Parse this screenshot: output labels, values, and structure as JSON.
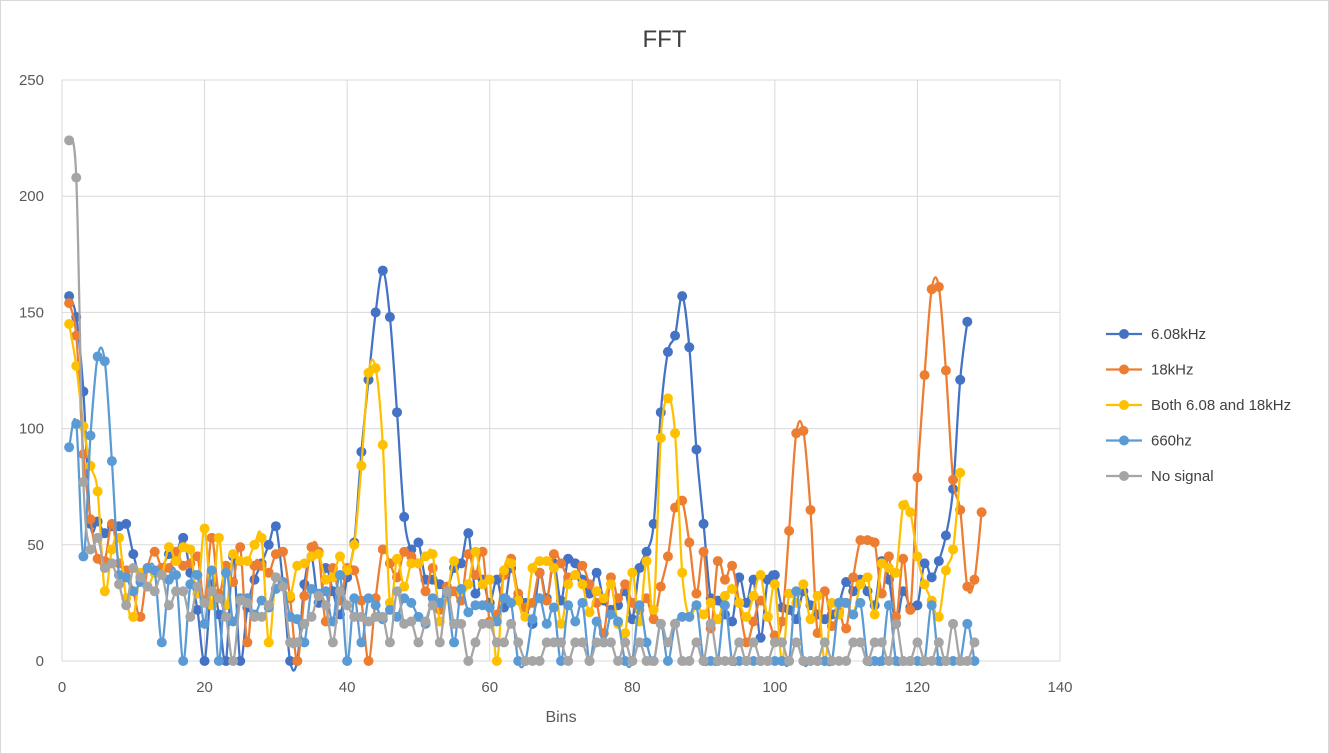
{
  "chart_data": {
    "type": "line",
    "title": "FFT",
    "xlabel": "Bins",
    "ylabel": "",
    "xlim": [
      0,
      140
    ],
    "ylim": [
      0,
      250
    ],
    "xticks": [
      "0",
      "20",
      "40",
      "60",
      "80",
      "100",
      "120",
      "140"
    ],
    "yticks": [
      "0",
      "50",
      "100",
      "150",
      "200",
      "250"
    ],
    "grid": true,
    "legend_position": "right",
    "series": [
      {
        "name": "6.08kHz",
        "color": "#4472C4",
        "x_start": 1,
        "values": [
          157,
          148,
          116,
          59,
          60,
          55,
          58,
          58,
          59,
          46,
          36,
          40,
          38,
          40,
          46,
          46,
          53,
          38,
          22,
          0,
          33,
          20,
          0,
          45,
          0,
          23,
          35,
          42,
          50,
          58,
          33,
          0,
          0,
          33,
          45,
          25,
          40,
          30,
          20,
          36,
          51,
          90,
          121,
          150,
          168,
          148,
          107,
          62,
          48,
          51,
          35,
          35,
          33,
          31,
          40,
          42,
          55,
          29,
          35,
          25,
          35,
          23,
          40,
          27,
          25,
          16,
          38,
          27,
          42,
          26,
          44,
          42,
          35,
          29,
          38,
          26,
          22,
          24,
          30,
          18,
          40,
          47,
          59,
          107,
          133,
          140,
          157,
          135,
          91,
          59,
          27,
          26,
          20,
          17,
          36,
          25,
          35,
          10,
          35,
          37,
          23,
          22,
          18,
          30,
          24,
          20,
          18,
          20,
          25,
          34,
          30,
          35,
          30,
          24,
          43,
          35,
          16,
          30,
          23,
          24,
          42,
          36,
          43,
          54,
          74,
          121,
          146
        ]
      },
      {
        "name": "18kHz",
        "color": "#ED7D31",
        "x_start": 1,
        "values": [
          154,
          140,
          89,
          61,
          44,
          43,
          59,
          42,
          39,
          30,
          19,
          40,
          47,
          40,
          40,
          47,
          41,
          42,
          45,
          26,
          53,
          29,
          41,
          34,
          49,
          8,
          41,
          41,
          38,
          46,
          47,
          27,
          0,
          28,
          49,
          47,
          17,
          40,
          26,
          40,
          39,
          26,
          0,
          27,
          48,
          42,
          36,
          47,
          45,
          42,
          30,
          40,
          22,
          32,
          30,
          26,
          46,
          37,
          47,
          17,
          20,
          37,
          44,
          29,
          23,
          25,
          38,
          26,
          46,
          42,
          36,
          37,
          41,
          33,
          25,
          12,
          36,
          27,
          33,
          25,
          22,
          27,
          18,
          32,
          45,
          66,
          69,
          51,
          29,
          47,
          14,
          43,
          35,
          41,
          25,
          8,
          17,
          26,
          19,
          11,
          17,
          56,
          98,
          99,
          65,
          12,
          30,
          15,
          21,
          14,
          36,
          52,
          52,
          51,
          29,
          45,
          19,
          44,
          22,
          79,
          123,
          160,
          161,
          125,
          78,
          65,
          32,
          35,
          64
        ]
      },
      {
        "name": "Both 6.08 and 18kHz",
        "color": "#FFC000",
        "x_start": 1,
        "values": [
          145,
          127,
          101,
          84,
          73,
          30,
          48,
          53,
          27,
          19,
          38,
          32,
          38,
          37,
          49,
          43,
          49,
          48,
          29,
          57,
          24,
          53,
          24,
          46,
          43,
          43,
          50,
          53,
          8,
          36,
          32,
          28,
          41,
          42,
          45,
          46,
          35,
          36,
          45,
          39,
          50,
          84,
          124,
          126,
          93,
          25,
          44,
          32,
          42,
          42,
          45,
          46,
          17,
          28,
          43,
          30,
          33,
          47,
          33,
          35,
          0,
          39,
          42,
          26,
          19,
          40,
          43,
          43,
          40,
          16,
          33,
          37,
          33,
          21,
          30,
          27,
          33,
          16,
          12,
          38,
          17,
          43,
          22,
          96,
          113,
          98,
          38,
          19,
          24,
          20,
          25,
          18,
          28,
          31,
          25,
          19,
          28,
          37,
          19,
          33,
          0,
          29,
          25,
          33,
          18,
          28,
          0,
          25,
          20,
          25,
          20,
          33,
          36,
          20,
          42,
          40,
          38,
          67,
          64,
          45,
          33,
          26,
          19,
          39,
          48,
          81
        ]
      },
      {
        "name": "660hz",
        "color": "#5B9BD5",
        "x_start": 1,
        "values": [
          92,
          102,
          45,
          97,
          131,
          129,
          86,
          37,
          36,
          30,
          34,
          40,
          39,
          8,
          35,
          37,
          0,
          33,
          37,
          16,
          39,
          0,
          38,
          17,
          27,
          27,
          20,
          26,
          23,
          31,
          34,
          19,
          18,
          8,
          31,
          29,
          30,
          17,
          37,
          0,
          27,
          8,
          27,
          24,
          18,
          22,
          19,
          27,
          25,
          19,
          16,
          27,
          25,
          29,
          8,
          31,
          21,
          24,
          24,
          23,
          17,
          27,
          25,
          0,
          0,
          18,
          27,
          16,
          23,
          0,
          24,
          17,
          25,
          0,
          17,
          8,
          20,
          17,
          0,
          0,
          24,
          8,
          0,
          16,
          0,
          16,
          19,
          19,
          24,
          0,
          0,
          0,
          24,
          0,
          0,
          0,
          0,
          0,
          0,
          0,
          0,
          0,
          30,
          0,
          0,
          0,
          0,
          0,
          25,
          25,
          20,
          25,
          0,
          0,
          0,
          24,
          0,
          0,
          0,
          0,
          0,
          24,
          0,
          0,
          0,
          0,
          16,
          0
        ]
      },
      {
        "name": "No signal",
        "color": "#A5A5A5",
        "x_start": 1,
        "values": [
          224,
          208,
          77,
          48,
          53,
          40,
          42,
          33,
          24,
          40,
          36,
          32,
          30,
          37,
          24,
          30,
          30,
          19,
          32,
          25,
          30,
          27,
          19,
          0,
          26,
          25,
          19,
          19,
          24,
          36,
          32,
          8,
          8,
          16,
          19,
          28,
          24,
          8,
          30,
          24,
          19,
          19,
          17,
          19,
          19,
          8,
          30,
          16,
          17,
          8,
          17,
          24,
          8,
          30,
          16,
          16,
          0,
          8,
          16,
          16,
          8,
          8,
          16,
          8,
          0,
          0,
          0,
          8,
          8,
          8,
          0,
          8,
          8,
          0,
          8,
          8,
          8,
          0,
          8,
          0,
          8,
          0,
          0,
          16,
          8,
          16,
          0,
          0,
          8,
          0,
          16,
          0,
          0,
          0,
          8,
          0,
          8,
          0,
          0,
          8,
          8,
          0,
          8,
          0,
          0,
          0,
          8,
          0,
          0,
          0,
          8,
          8,
          0,
          8,
          8,
          0,
          16,
          0,
          0,
          8,
          0,
          0,
          8,
          0,
          16,
          0,
          0,
          8
        ]
      }
    ]
  }
}
